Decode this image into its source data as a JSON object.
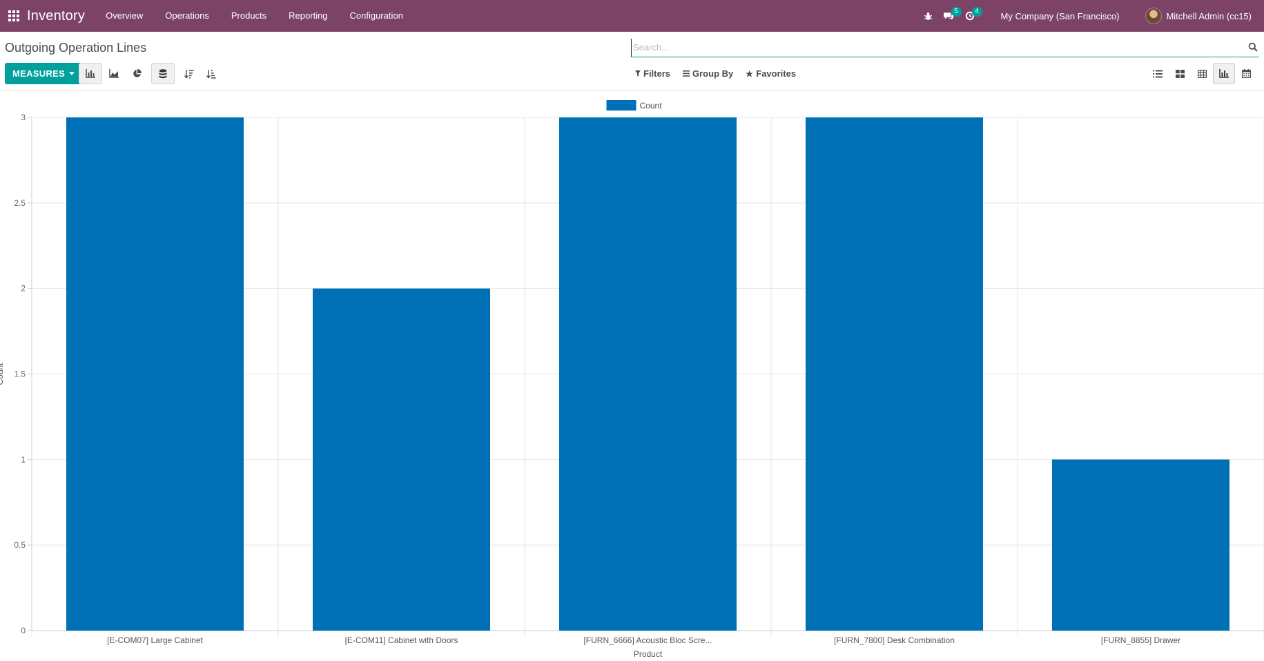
{
  "app": {
    "title": "Inventory",
    "menu": [
      "Overview",
      "Operations",
      "Products",
      "Reporting",
      "Configuration"
    ],
    "messages_badge": "5",
    "activities_badge": "4",
    "company": "My Company (San Francisco)",
    "user": "Mitchell Admin (cc15)"
  },
  "control_panel": {
    "title": "Outgoing Operation Lines",
    "search_placeholder": "Search...",
    "measures_label": "MEASURES",
    "filters_label": "Filters",
    "group_by_label": "Group By",
    "favorites_label": "Favorites"
  },
  "colors": {
    "navbar": "#7c4367",
    "accent": "#00a09d",
    "bar": "#0070b6"
  },
  "chart_data": {
    "type": "bar",
    "categories": [
      "[E-COM07] Large Cabinet",
      "[E-COM11] Cabinet with Doors",
      "[FURN_6666] Acoustic Bloc Scre...",
      "[FURN_7800] Desk Combination",
      "[FURN_8855] Drawer"
    ],
    "series": [
      {
        "name": "Count",
        "values": [
          3,
          2,
          3,
          3,
          1
        ]
      }
    ],
    "ylabel": "Count",
    "xlabel": "Product",
    "ylim": [
      0,
      3
    ],
    "yticks": [
      "0",
      "0.5",
      "1",
      "1.5",
      "2",
      "2.5",
      "3"
    ],
    "grid": true,
    "legend": "top-center"
  }
}
